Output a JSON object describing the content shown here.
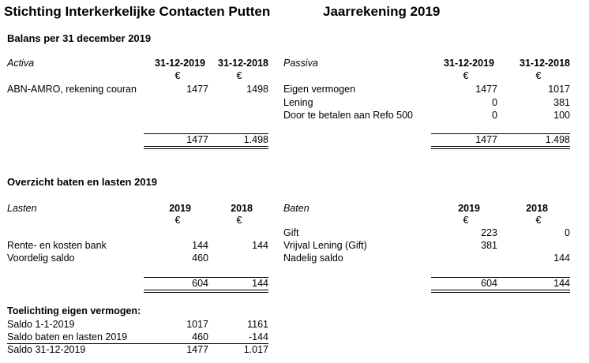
{
  "header": {
    "org": "Stichting Interkerkelijke Contacten Putten",
    "report": "Jaarrekening 2019"
  },
  "balance": {
    "title": "Balans per 31 december 2019",
    "currency": "€",
    "activa": {
      "label": "Activa",
      "col1": "31-12-2019",
      "col2": "31-12-2018",
      "rows": [
        {
          "label": "ABN-AMRO, rekening couran",
          "v1": "1477",
          "v2": "1498"
        }
      ],
      "total1": "1477",
      "total2": "1.498"
    },
    "passiva": {
      "label": "Passiva",
      "col1": "31-12-2019",
      "col2": "31-12-2018",
      "rows": [
        {
          "label": "Eigen vermogen",
          "v1": "1477",
          "v2": "1017"
        },
        {
          "label": "Lening",
          "v1": "0",
          "v2": "381"
        },
        {
          "label": "Door te betalen aan Refo 500",
          "v1": "0",
          "v2": "100"
        }
      ],
      "total1": "1477",
      "total2": "1.498"
    }
  },
  "income": {
    "title": "Overzicht baten en lasten 2019",
    "currency": "€",
    "lasten": {
      "label": "Lasten",
      "col1": "2019",
      "col2": "2018",
      "rows": [
        {
          "label": "Rente- en kosten bank",
          "v1": "144",
          "v2": "144"
        },
        {
          "label": "Voordelig saldo",
          "v1": "460",
          "v2": ""
        }
      ],
      "total1": "604",
      "total2": "144"
    },
    "baten": {
      "label": "Baten",
      "col1": "2019",
      "col2": "2018",
      "rows": [
        {
          "label": "Gift",
          "v1": "223",
          "v2": "0"
        },
        {
          "label": "Vrijval Lening (Gift)",
          "v1": "381",
          "v2": ""
        },
        {
          "label": "Nadelig saldo",
          "v1": "",
          "v2": "144"
        }
      ],
      "total1": "604",
      "total2": "144"
    }
  },
  "notes": {
    "title": "Toelichting eigen vermogen:",
    "rows": [
      {
        "label": "Saldo 1-1-2019",
        "v1": "1017",
        "v2": "1161"
      },
      {
        "label": "Saldo baten en lasten 2019",
        "v1": "460",
        "v2": "-144"
      },
      {
        "label": "Saldo 31-12-2019",
        "v1": "1477",
        "v2": "1.017"
      }
    ]
  }
}
